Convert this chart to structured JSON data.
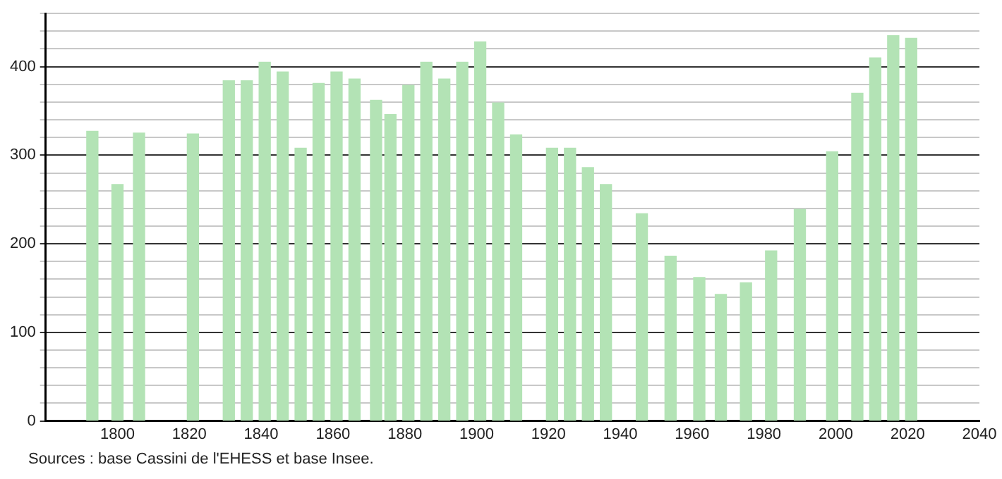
{
  "chart_data": {
    "type": "bar",
    "color": "#b3e3b5",
    "x": [
      1793,
      1800,
      1806,
      1821,
      1831,
      1836,
      1841,
      1846,
      1851,
      1856,
      1861,
      1866,
      1872,
      1876,
      1881,
      1886,
      1891,
      1896,
      1901,
      1906,
      1911,
      1921,
      1926,
      1931,
      1936,
      1946,
      1954,
      1962,
      1968,
      1975,
      1982,
      1990,
      1999,
      2006,
      2011,
      2016,
      2021
    ],
    "values": [
      327,
      267,
      325,
      324,
      384,
      384,
      405,
      394,
      308,
      381,
      394,
      386,
      362,
      346,
      379,
      405,
      386,
      405,
      428,
      359,
      323,
      308,
      308,
      286,
      267,
      234,
      186,
      162,
      143,
      156,
      192,
      239,
      304,
      370,
      410,
      435,
      432
    ],
    "xlim": [
      1780,
      2040
    ],
    "xticks": [
      1800,
      1820,
      1840,
      1860,
      1880,
      1900,
      1920,
      1940,
      1960,
      1980,
      2000,
      2020,
      2040
    ],
    "ylim": [
      0,
      460
    ],
    "yticks": [
      0,
      {
        "value": 20,
        "label": null
      },
      {
        "value": 40,
        "label": null
      },
      {
        "value": 60,
        "label": null
      },
      {
        "value": 80,
        "label": null
      },
      100,
      {
        "value": 120,
        "label": null
      },
      {
        "value": 140,
        "label": null
      },
      {
        "value": 160,
        "label": null
      },
      {
        "value": 180,
        "label": null
      },
      200,
      {
        "value": 220,
        "label": null
      },
      {
        "value": 240,
        "label": null
      },
      {
        "value": 260,
        "label": null
      },
      {
        "value": 280,
        "label": null
      },
      300,
      {
        "value": 320,
        "label": null
      },
      {
        "value": 340,
        "label": null
      },
      {
        "value": 360,
        "label": null
      },
      {
        "value": 380,
        "label": null
      },
      400,
      {
        "value": 420,
        "label": null
      },
      {
        "value": 440,
        "label": null
      },
      {
        "value": 460,
        "label": null
      }
    ],
    "grid": "y",
    "annotations": [
      "Sources : base Cassini de l'EHESS et base Insee."
    ]
  }
}
